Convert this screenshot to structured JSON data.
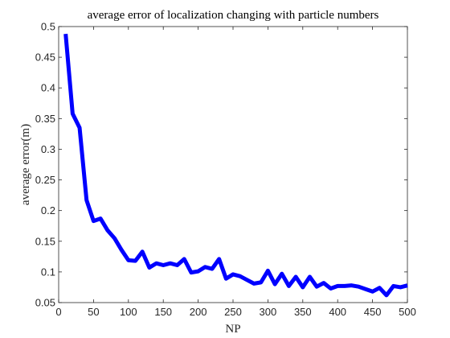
{
  "chart_data": {
    "type": "line",
    "title": "average error of localization changing with particle numbers",
    "xlabel": "NP",
    "ylabel": "average error(m)",
    "xlim": [
      0,
      500
    ],
    "ylim": [
      0.05,
      0.5
    ],
    "xticks": [
      0,
      50,
      100,
      150,
      200,
      250,
      300,
      350,
      400,
      450,
      500
    ],
    "yticks": [
      0.05,
      0.1,
      0.15,
      0.2,
      0.25,
      0.3,
      0.35,
      0.4,
      0.45,
      0.5
    ],
    "xtick_labels": [
      "0",
      "50",
      "100",
      "150",
      "200",
      "250",
      "300",
      "350",
      "400",
      "450",
      "500"
    ],
    "ytick_labels": [
      "0.05",
      "0.1",
      "0.15",
      "0.2",
      "0.25",
      "0.3",
      "0.35",
      "0.4",
      "0.45",
      "0.5"
    ],
    "grid": false,
    "series": [
      {
        "color": "#0000ff",
        "x": [
          10,
          20,
          30,
          40,
          50,
          60,
          70,
          80,
          90,
          100,
          110,
          120,
          130,
          140,
          150,
          160,
          170,
          180,
          190,
          200,
          210,
          220,
          230,
          240,
          250,
          260,
          270,
          280,
          290,
          300,
          310,
          320,
          330,
          340,
          350,
          360,
          370,
          380,
          390,
          400,
          410,
          420,
          430,
          440,
          450,
          460,
          470,
          480,
          490,
          500
        ],
        "y": [
          0.488,
          0.358,
          0.335,
          0.217,
          0.183,
          0.187,
          0.168,
          0.155,
          0.136,
          0.119,
          0.118,
          0.133,
          0.107,
          0.114,
          0.111,
          0.114,
          0.111,
          0.121,
          0.099,
          0.101,
          0.108,
          0.105,
          0.121,
          0.089,
          0.096,
          0.093,
          0.087,
          0.081,
          0.083,
          0.102,
          0.08,
          0.097,
          0.077,
          0.092,
          0.075,
          0.092,
          0.076,
          0.082,
          0.073,
          0.077,
          0.077,
          0.078,
          0.076,
          0.072,
          0.068,
          0.074,
          0.062,
          0.077,
          0.075,
          0.078
        ]
      }
    ]
  }
}
